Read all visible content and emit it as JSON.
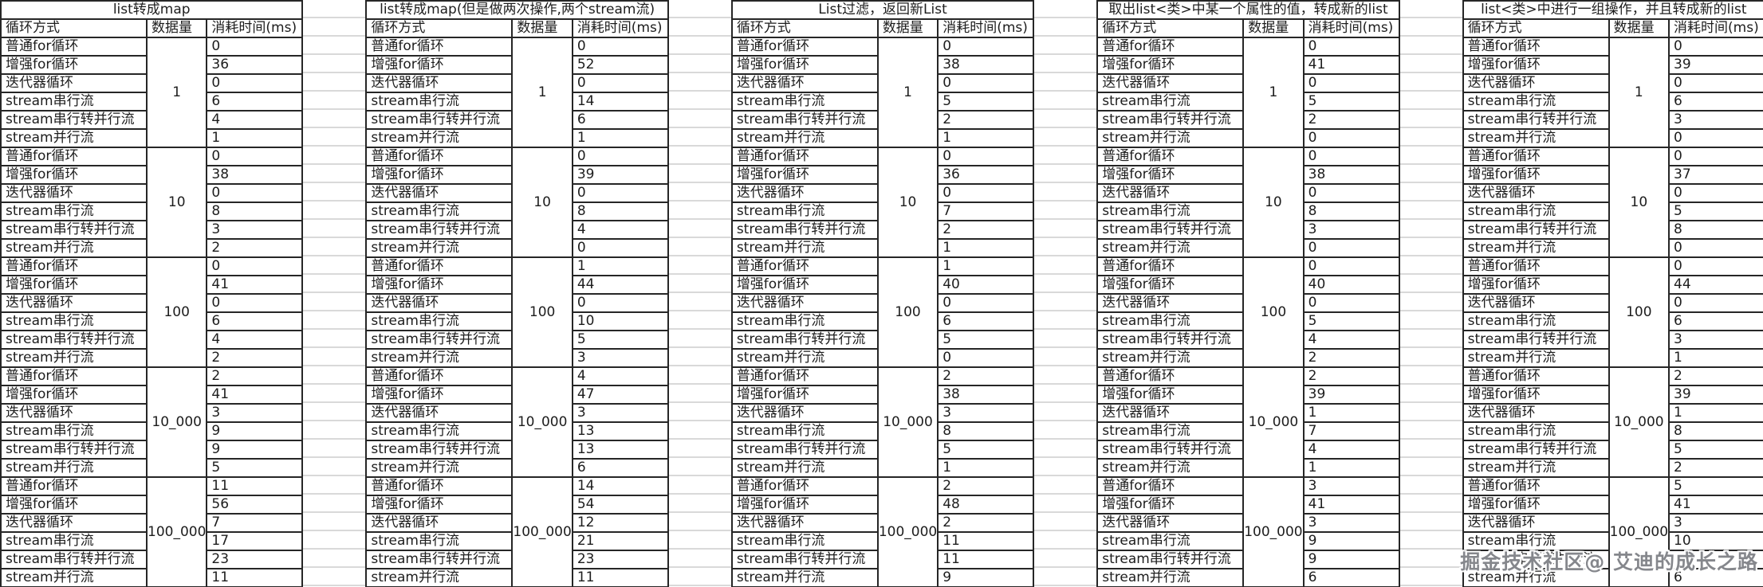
{
  "columns": {
    "method": "循环方式",
    "volume": "数据量",
    "time": "消耗时间(ms)"
  },
  "methods": [
    "普通for循环",
    "增强for循环",
    "迭代器循环",
    "stream串行流",
    "stream串行转并行流",
    "stream并行流"
  ],
  "volumes": [
    "1",
    "10",
    "100",
    "10_000",
    "100_000"
  ],
  "watermark": "掘金技术社区@ 艾迪的成长之路",
  "tables": [
    {
      "title": "list转成map",
      "times": [
        [
          0,
          36,
          0,
          6,
          4,
          1
        ],
        [
          0,
          38,
          0,
          8,
          3,
          2
        ],
        [
          0,
          41,
          0,
          6,
          4,
          2
        ],
        [
          2,
          41,
          3,
          9,
          9,
          5
        ],
        [
          11,
          56,
          7,
          17,
          23,
          11
        ]
      ]
    },
    {
      "title": "list转成map(但是做两次操作,两个stream流)",
      "times": [
        [
          0,
          52,
          0,
          14,
          6,
          1
        ],
        [
          0,
          39,
          0,
          8,
          4,
          0
        ],
        [
          1,
          44,
          0,
          10,
          5,
          3
        ],
        [
          4,
          47,
          3,
          13,
          13,
          6
        ],
        [
          14,
          54,
          12,
          21,
          23,
          11
        ]
      ]
    },
    {
      "title": "List过滤，返回新List",
      "times": [
        [
          0,
          38,
          0,
          5,
          2,
          1
        ],
        [
          0,
          36,
          0,
          7,
          2,
          1
        ],
        [
          1,
          40,
          0,
          6,
          5,
          0
        ],
        [
          2,
          38,
          3,
          8,
          5,
          1
        ],
        [
          2,
          48,
          2,
          11,
          11,
          9
        ]
      ]
    },
    {
      "title": "取出list<类>中某一个属性的值，转成新的list",
      "times": [
        [
          0,
          41,
          0,
          5,
          2,
          0
        ],
        [
          0,
          38,
          0,
          8,
          3,
          0
        ],
        [
          0,
          40,
          0,
          5,
          4,
          2
        ],
        [
          2,
          39,
          1,
          7,
          4,
          1
        ],
        [
          3,
          41,
          3,
          9,
          9,
          6
        ]
      ]
    },
    {
      "title": "list<类>中进行一组操作，并且转成新的list",
      "times": [
        [
          0,
          39,
          0,
          6,
          3,
          0
        ],
        [
          0,
          37,
          0,
          5,
          8,
          0
        ],
        [
          0,
          44,
          0,
          6,
          3,
          1
        ],
        [
          2,
          39,
          1,
          8,
          5,
          2
        ],
        [
          5,
          41,
          3,
          10,
          "",
          6
        ]
      ]
    }
  ]
}
